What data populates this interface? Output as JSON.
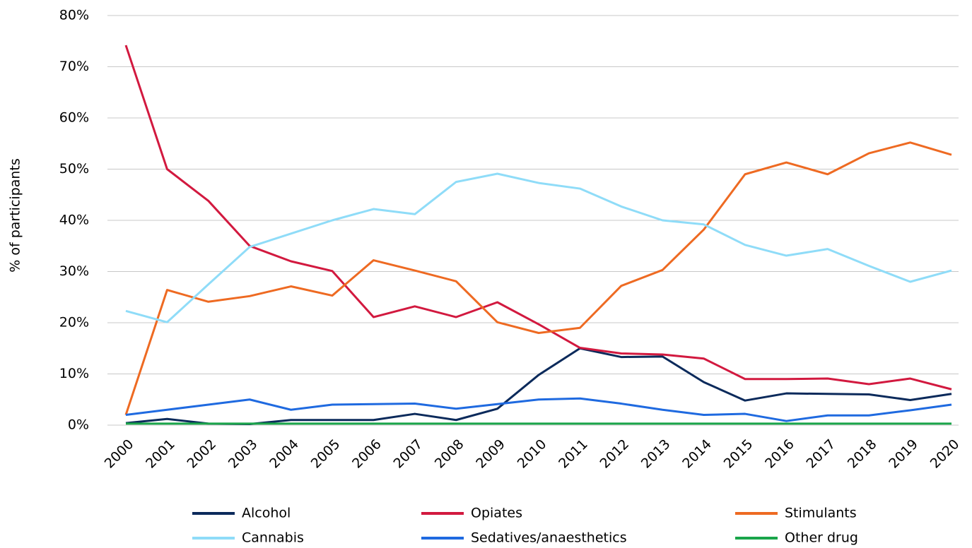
{
  "chart_data": {
    "type": "line",
    "y_label": "% of participants",
    "categories": [
      "2000",
      "2001",
      "2002",
      "2003",
      "2004",
      "2005",
      "2006",
      "2007",
      "2008",
      "2009",
      "2010",
      "2011",
      "2012",
      "2013",
      "2014",
      "2015",
      "2016",
      "2017",
      "2018",
      "2019",
      "2020"
    ],
    "series": [
      {
        "name": "Alcohol",
        "color": "#0b2a5b",
        "values": [
          0.4,
          1.2,
          0.3,
          0.2,
          1.0,
          1.0,
          1.0,
          2.2,
          1.0,
          3.2,
          9.8,
          15.0,
          13.3,
          13.4,
          8.4,
          4.8,
          6.2,
          6.1,
          6.0,
          4.9,
          6.1
        ]
      },
      {
        "name": "Opiates",
        "color": "#d2193f",
        "values": [
          74.2,
          50.0,
          43.8,
          35.0,
          32.0,
          30.1,
          21.1,
          23.2,
          21.1,
          24.0,
          19.7,
          15.1,
          14.0,
          13.8,
          13.0,
          9.0,
          9.0,
          9.1,
          8.0,
          9.1,
          7.0
        ]
      },
      {
        "name": "Stimulants",
        "color": "#ee6a22",
        "values": [
          2.0,
          26.4,
          24.1,
          25.2,
          27.1,
          25.3,
          32.2,
          30.2,
          28.1,
          20.1,
          18.0,
          19.0,
          27.2,
          30.3,
          38.2,
          49.0,
          51.3,
          49.0,
          53.1,
          55.2,
          52.8
        ]
      },
      {
        "name": "Cannabis",
        "color": "#8fdcf8",
        "values": [
          22.3,
          20.1,
          27.5,
          34.8,
          37.4,
          40.0,
          42.2,
          41.2,
          47.5,
          49.1,
          47.3,
          46.2,
          42.7,
          40.0,
          39.2,
          35.2,
          33.1,
          34.4,
          31.1,
          28.0,
          30.2
        ]
      },
      {
        "name": "Sedatives/anaesthetics",
        "color": "#1f6ae0",
        "values": [
          2.0,
          3.0,
          4.0,
          5.0,
          3.0,
          4.0,
          4.1,
          4.2,
          3.2,
          4.1,
          5.0,
          5.2,
          4.2,
          3.0,
          2.0,
          2.2,
          0.8,
          1.9,
          1.9,
          2.9,
          4.0
        ]
      },
      {
        "name": "Other drug",
        "color": "#1aa54a",
        "values": [
          0.3,
          0.3,
          0.3,
          0.3,
          0.3,
          0.3,
          0.3,
          0.3,
          0.3,
          0.3,
          0.3,
          0.3,
          0.3,
          0.3,
          0.3,
          0.3,
          0.3,
          0.3,
          0.3,
          0.3,
          0.3
        ]
      }
    ],
    "ylim": [
      0,
      80
    ],
    "yticks": [
      {
        "value": 0,
        "label": "0%"
      },
      {
        "value": 10,
        "label": "10%"
      },
      {
        "value": 20,
        "label": "20%"
      },
      {
        "value": 30,
        "label": "30%"
      },
      {
        "value": 40,
        "label": "40%"
      },
      {
        "value": 50,
        "label": "50%"
      },
      {
        "value": 60,
        "label": "60%"
      },
      {
        "value": 70,
        "label": "70%"
      },
      {
        "value": 80,
        "label": "80%"
      }
    ],
    "grid": true,
    "legend": "bottom"
  }
}
